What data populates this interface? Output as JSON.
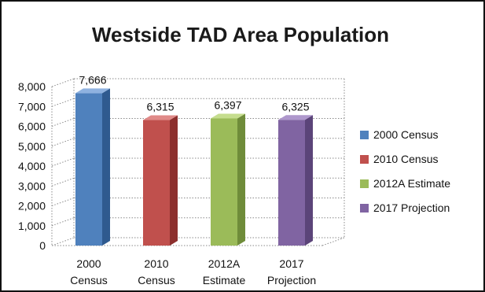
{
  "chart_data": {
    "type": "bar",
    "title": "Westside TAD Area Population",
    "categories": [
      [
        "2000",
        "Census"
      ],
      [
        "2010",
        "Census"
      ],
      [
        "2012A",
        "Estimate"
      ],
      [
        "2017",
        "Projection"
      ]
    ],
    "values": [
      7666,
      6315,
      6397,
      6325
    ],
    "value_labels": [
      "7,666",
      "6,315",
      "6,397",
      "6,325"
    ],
    "ylim": [
      0,
      8000
    ],
    "yticks": [
      0,
      1000,
      2000,
      3000,
      4000,
      5000,
      6000,
      7000,
      8000
    ],
    "ytick_labels": [
      "0",
      "1,000",
      "2,000",
      "3,000",
      "4,000",
      "5,000",
      "6,000",
      "7,000",
      "8,000"
    ],
    "grid": true,
    "style": "3d",
    "legend": {
      "position": "right",
      "entries": [
        "2000 Census",
        "2010 Census",
        "2012A Estimate",
        "2017 Projection"
      ]
    },
    "colors": [
      "#4f81bd",
      "#c0504d",
      "#9bbb59",
      "#8064a2"
    ],
    "colors_dark": [
      "#2f5a8f",
      "#8c2f2d",
      "#6f8c3a",
      "#5b4479"
    ],
    "colors_light": [
      "#8fb2e0",
      "#e08a88",
      "#c5dd8e",
      "#ae97cc"
    ]
  }
}
